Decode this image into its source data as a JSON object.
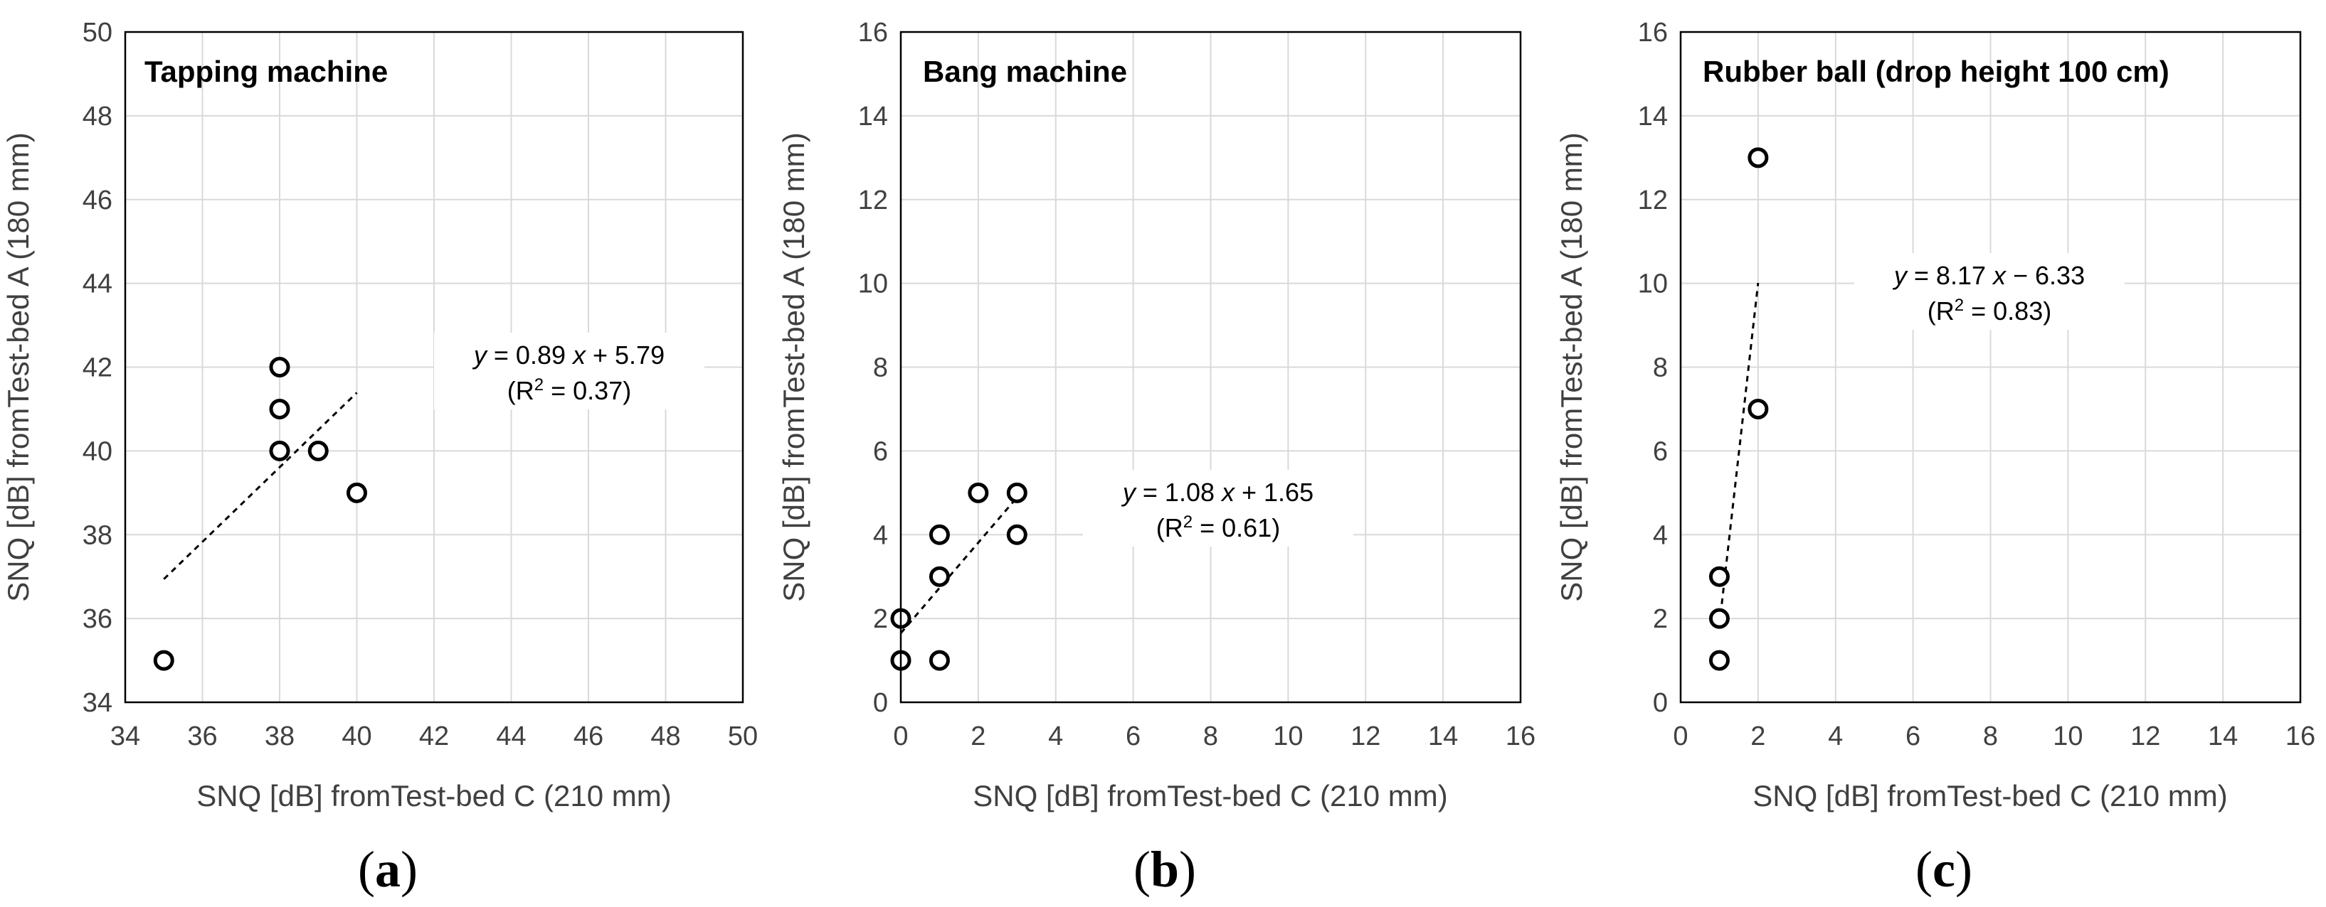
{
  "chart_data": [
    {
      "type": "scatter",
      "panel_label": "a",
      "title": "Tapping machine",
      "xlabel": "SNQ [dB] fromTest-bed C (210 mm)",
      "ylabel": "SNQ [dB] fromTest-bed A (180 mm)",
      "xlim": [
        34,
        50
      ],
      "ylim": [
        34,
        50
      ],
      "xticks": [
        34,
        36,
        38,
        40,
        42,
        44,
        46,
        48,
        50
      ],
      "yticks": [
        34,
        36,
        38,
        40,
        42,
        44,
        46,
        48,
        50
      ],
      "grid": true,
      "points": [
        {
          "x": 35,
          "y": 35
        },
        {
          "x": 38,
          "y": 40
        },
        {
          "x": 38,
          "y": 41
        },
        {
          "x": 38,
          "y": 42
        },
        {
          "x": 39,
          "y": 40
        },
        {
          "x": 40,
          "y": 39
        }
      ],
      "trendline": {
        "slope": 0.89,
        "intercept": 5.79,
        "x_range": [
          35,
          40
        ]
      },
      "equation": {
        "y": "y",
        "rest": " = 0.89 ",
        "x": "x",
        "tail": " + 5.79"
      },
      "r2": {
        "prefix": "(R",
        "sup": "2",
        "suffix": " = 0.37)"
      }
    },
    {
      "type": "scatter",
      "panel_label": "b",
      "title": "Bang machine",
      "xlabel": "SNQ [dB] fromTest-bed C (210 mm)",
      "ylabel": "SNQ [dB] fromTest-bed A (180 mm)",
      "xlim": [
        0,
        16
      ],
      "ylim": [
        0,
        16
      ],
      "xticks": [
        0,
        2,
        4,
        6,
        8,
        10,
        12,
        14,
        16
      ],
      "yticks": [
        0,
        2,
        4,
        6,
        8,
        10,
        12,
        14,
        16
      ],
      "grid": true,
      "points": [
        {
          "x": 0,
          "y": 1
        },
        {
          "x": 0,
          "y": 2
        },
        {
          "x": 1,
          "y": 1
        },
        {
          "x": 1,
          "y": 3
        },
        {
          "x": 1,
          "y": 4
        },
        {
          "x": 2,
          "y": 5
        },
        {
          "x": 3,
          "y": 4
        },
        {
          "x": 3,
          "y": 5
        }
      ],
      "trendline": {
        "slope": 1.08,
        "intercept": 1.65,
        "x_range": [
          0,
          3
        ]
      },
      "equation": {
        "y": "y",
        "rest": " = 1.08 ",
        "x": "x",
        "tail": " + 1.65"
      },
      "r2": {
        "prefix": "(R",
        "sup": "2",
        "suffix": " = 0.61)"
      }
    },
    {
      "type": "scatter",
      "panel_label": "c",
      "title": "Rubber ball (drop height 100 cm)",
      "xlabel": "SNQ [dB] fromTest-bed C (210 mm)",
      "ylabel": "SNQ [dB] fromTest-bed A (180 mm)",
      "xlim": [
        0,
        16
      ],
      "ylim": [
        0,
        16
      ],
      "xticks": [
        0,
        2,
        4,
        6,
        8,
        10,
        12,
        14,
        16
      ],
      "yticks": [
        0,
        2,
        4,
        6,
        8,
        10,
        12,
        14,
        16
      ],
      "grid": true,
      "points": [
        {
          "x": 1,
          "y": 1
        },
        {
          "x": 1,
          "y": 2
        },
        {
          "x": 1,
          "y": 3
        },
        {
          "x": 2,
          "y": 7
        },
        {
          "x": 2,
          "y": 13
        }
      ],
      "trendline": {
        "slope": 8.17,
        "intercept": -6.33,
        "x_range": [
          1,
          2
        ]
      },
      "equation": {
        "y": "y",
        "rest": " = 8.17 ",
        "x": "x",
        "tail": " − 6.33"
      },
      "r2": {
        "prefix": "(R",
        "sup": "2",
        "suffix": " = 0.83)"
      }
    }
  ]
}
